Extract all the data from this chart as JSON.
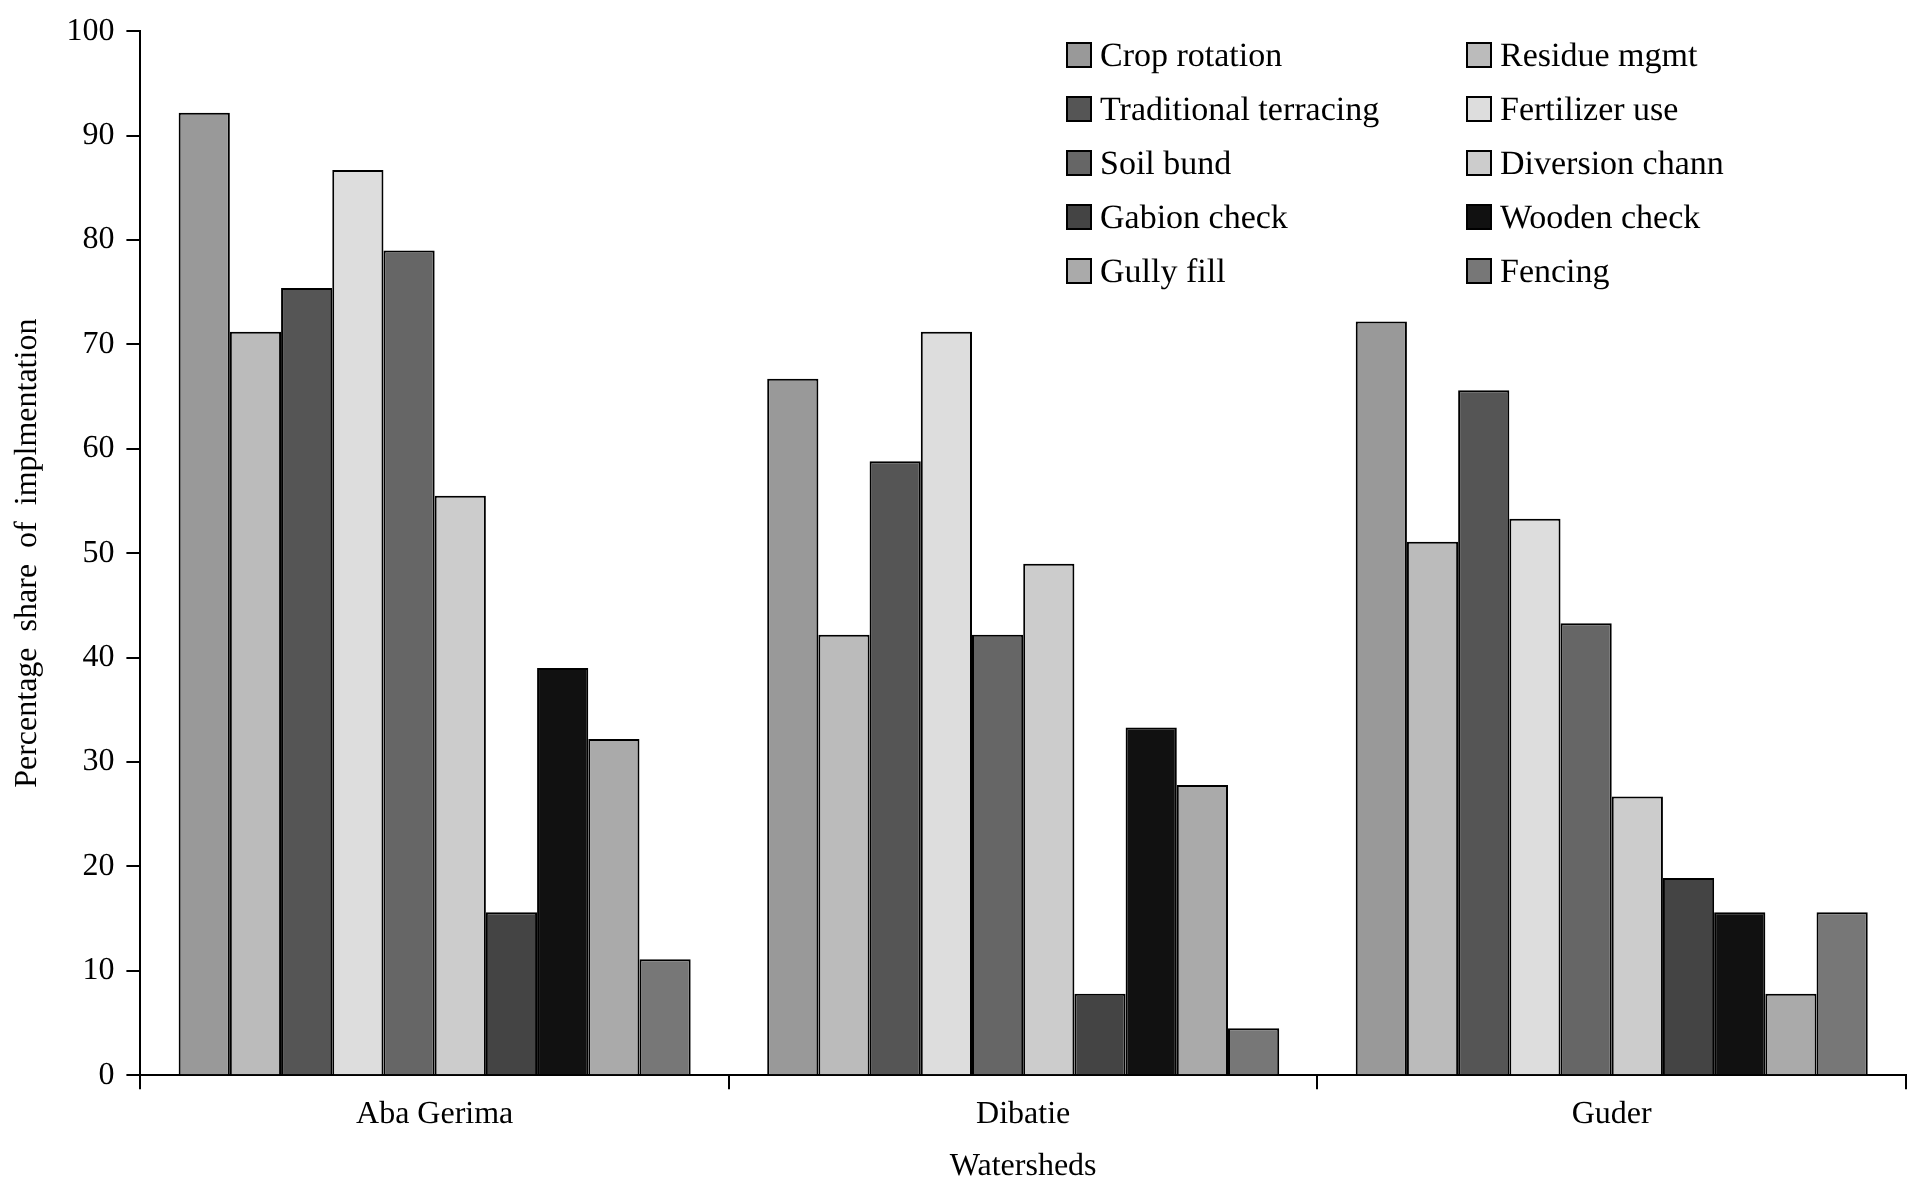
{
  "chart_data": {
    "type": "bar",
    "xlabel": "Watersheds",
    "ylabel": "Percentage  share  of  implmentation",
    "categories": [
      "Aba Gerima",
      "Dibatie",
      "Guder"
    ],
    "ylim": [
      0,
      100
    ],
    "yticks": [
      0,
      10,
      20,
      30,
      40,
      50,
      60,
      70,
      80,
      90,
      100
    ],
    "grid": false,
    "legend": "top right",
    "series": [
      {
        "name": "Crop rotation",
        "color": "#999999",
        "values": [
          92.2,
          66.7,
          72.2
        ]
      },
      {
        "name": "Residue mgmt",
        "color": "#bbbbbb",
        "values": [
          71.2,
          42.2,
          51.1
        ]
      },
      {
        "name": "Traditional terracing",
        "color": "#555555",
        "values": [
          75.4,
          58.8,
          65.6
        ]
      },
      {
        "name": "Fertilizer use",
        "color": "#dddddd",
        "values": [
          86.7,
          71.2,
          53.3
        ]
      },
      {
        "name": "Soil bund",
        "color": "#666666",
        "values": [
          79,
          42.2,
          43.3
        ]
      },
      {
        "name": "Diversion chann",
        "color": "#cccccc",
        "values": [
          55.5,
          49,
          26.7
        ]
      },
      {
        "name": "Gabion check",
        "color": "#444444",
        "values": [
          15.6,
          7.8,
          18.9
        ]
      },
      {
        "name": "Wooden check",
        "color": "#111111",
        "values": [
          39,
          33.3,
          15.6
        ]
      },
      {
        "name": "Gully fill",
        "color": "#aaaaaa",
        "values": [
          32.2,
          27.8,
          7.8
        ]
      },
      {
        "name": "Fencing",
        "color": "#777777",
        "values": [
          11.1,
          4.5,
          15.6
        ]
      }
    ]
  }
}
